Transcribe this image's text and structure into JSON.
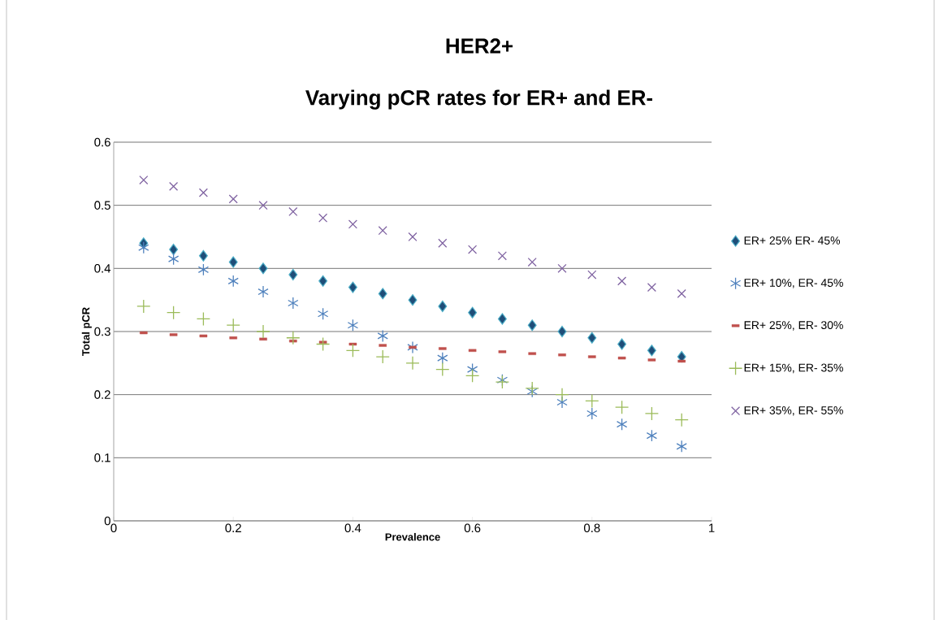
{
  "chart_data": {
    "type": "scatter",
    "title": "HER2+\nVarying pCR rates for ER+ and ER-",
    "xlabel": "Prevalence",
    "ylabel": "Total pCR",
    "x": [
      0.05,
      0.1,
      0.15,
      0.2,
      0.25,
      0.3,
      0.35,
      0.4,
      0.45,
      0.5,
      0.55,
      0.6,
      0.65,
      0.7,
      0.75,
      0.8,
      0.85,
      0.9,
      0.95
    ],
    "series": [
      {
        "name": "ER+ 25% ER- 45%",
        "color": "#1f4e79",
        "marker": "diamond",
        "values": [
          0.44,
          0.43,
          0.42,
          0.41,
          0.4,
          0.39,
          0.38,
          0.37,
          0.36,
          0.35,
          0.34,
          0.33,
          0.32,
          0.31,
          0.3,
          0.29,
          0.28,
          0.27,
          0.26
        ]
      },
      {
        "name": "ER+ 10%, ER- 45%",
        "color": "#4f81bd",
        "marker": "cross",
        "values": [
          0.433,
          0.415,
          0.398,
          0.38,
          0.363,
          0.345,
          0.328,
          0.31,
          0.293,
          0.275,
          0.258,
          0.24,
          0.223,
          0.205,
          0.188,
          0.17,
          0.153,
          0.135,
          0.118
        ]
      },
      {
        "name": "ER+ 25%, ER- 30%",
        "color": "#c0504d",
        "marker": "square",
        "values": [
          0.298,
          0.295,
          0.293,
          0.29,
          0.288,
          0.285,
          0.283,
          0.28,
          0.278,
          0.275,
          0.273,
          0.27,
          0.268,
          0.265,
          0.263,
          0.26,
          0.258,
          0.255,
          0.253
        ]
      },
      {
        "name": "ER+ 15%, ER- 35%",
        "color": "#9bbb59",
        "marker": "cross",
        "values": [
          0.34,
          0.33,
          0.32,
          0.31,
          0.3,
          0.29,
          0.28,
          0.27,
          0.26,
          0.25,
          0.24,
          0.23,
          0.22,
          0.21,
          0.2,
          0.19,
          0.18,
          0.17,
          0.16
        ]
      },
      {
        "name": "ER+ 35%, ER- 55%",
        "color": "#8064a2",
        "marker": "cross",
        "values": [
          0.54,
          0.53,
          0.52,
          0.51,
          0.5,
          0.49,
          0.48,
          0.47,
          0.46,
          0.45,
          0.44,
          0.43,
          0.42,
          0.41,
          0.4,
          0.39,
          0.38,
          0.37,
          0.36
        ]
      }
    ],
    "xlim": [
      0,
      1
    ],
    "xticks": [
      0,
      0.2,
      0.4,
      0.6,
      0.8,
      1
    ],
    "ylim": [
      0,
      0.6
    ],
    "yticks": [
      0,
      0.1,
      0.2,
      0.3,
      0.4,
      0.5,
      0.6
    ],
    "grid": "y",
    "legend": "right"
  }
}
